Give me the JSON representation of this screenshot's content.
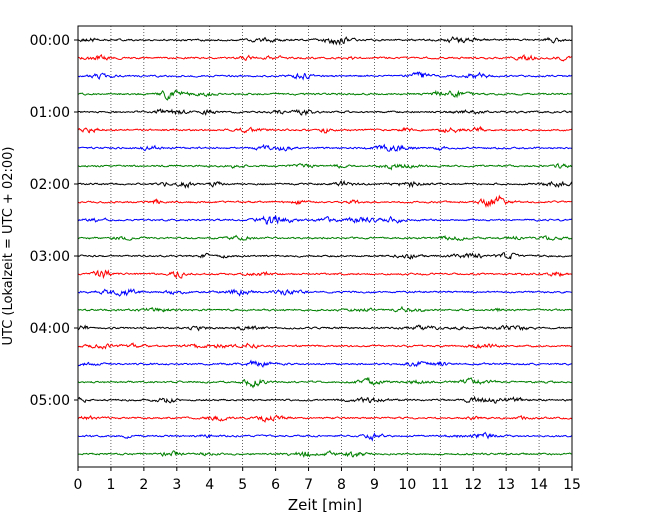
{
  "chart_data": {
    "type": "line",
    "title": "",
    "xlabel": "Zeit  [min]",
    "ylabel": "UTC (Lokalzeit = UTC + 02:00)",
    "xlim": [
      0,
      15
    ],
    "x_ticks": [
      0,
      1,
      2,
      3,
      4,
      5,
      6,
      7,
      8,
      9,
      10,
      11,
      12,
      13,
      14,
      15
    ],
    "y_tick_labels": [
      "00:00",
      "01:00",
      "02:00",
      "03:00",
      "04:00",
      "05:00"
    ],
    "grid": "vertical dotted at each minute",
    "legend": "none",
    "trace_interval_minutes": 15,
    "trace_count": 24,
    "trace_colors": [
      "#000000",
      "#ff0000",
      "#0000ff",
      "#008000"
    ],
    "series_description": "Seismogram helicorder: each row is a 15-minute trace of low-amplitude noise; colors cycle black, red, blue, green."
  }
}
